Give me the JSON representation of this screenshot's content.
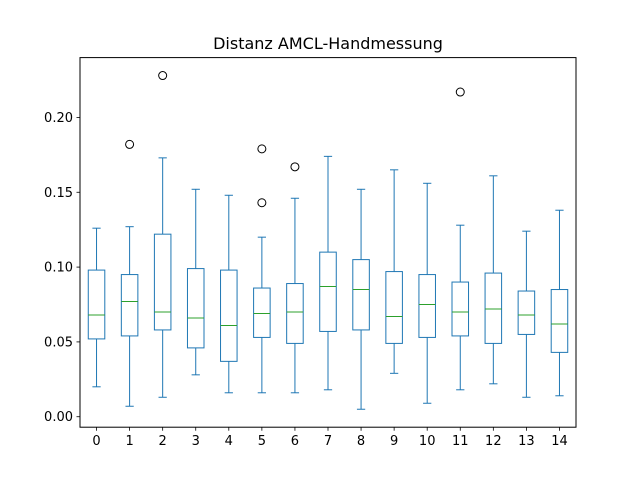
{
  "chart_data": {
    "type": "box",
    "title": "Distanz AMCL-Handmessung",
    "xlabel": "",
    "ylabel": "",
    "ylim": [
      -0.007,
      0.24
    ],
    "yticks": [
      0.0,
      0.05,
      0.1,
      0.15,
      0.2
    ],
    "ytick_labels": [
      "0.00",
      "0.05",
      "0.10",
      "0.15",
      "0.20"
    ],
    "categories": [
      "0",
      "1",
      "2",
      "3",
      "4",
      "5",
      "6",
      "7",
      "8",
      "9",
      "10",
      "11",
      "12",
      "13",
      "14"
    ],
    "grid": false,
    "legend": "none",
    "colors": {
      "box": "#1f77b4",
      "median": "#2ca02c",
      "outlier": "#000000"
    },
    "boxes": [
      {
        "label": "0",
        "whisker_low": 0.02,
        "q1": 0.052,
        "median": 0.068,
        "q3": 0.098,
        "whisker_high": 0.126,
        "outliers": []
      },
      {
        "label": "1",
        "whisker_low": 0.007,
        "q1": 0.054,
        "median": 0.077,
        "q3": 0.095,
        "whisker_high": 0.127,
        "outliers": [
          0.182
        ]
      },
      {
        "label": "2",
        "whisker_low": 0.013,
        "q1": 0.058,
        "median": 0.07,
        "q3": 0.122,
        "whisker_high": 0.173,
        "outliers": [
          0.228
        ]
      },
      {
        "label": "3",
        "whisker_low": 0.028,
        "q1": 0.046,
        "median": 0.066,
        "q3": 0.099,
        "whisker_high": 0.152,
        "outliers": []
      },
      {
        "label": "4",
        "whisker_low": 0.016,
        "q1": 0.037,
        "median": 0.061,
        "q3": 0.098,
        "whisker_high": 0.148,
        "outliers": []
      },
      {
        "label": "5",
        "whisker_low": 0.016,
        "q1": 0.053,
        "median": 0.069,
        "q3": 0.086,
        "whisker_high": 0.12,
        "outliers": [
          0.179,
          0.143
        ]
      },
      {
        "label": "6",
        "whisker_low": 0.016,
        "q1": 0.049,
        "median": 0.07,
        "q3": 0.089,
        "whisker_high": 0.146,
        "outliers": [
          0.167
        ]
      },
      {
        "label": "7",
        "whisker_low": 0.018,
        "q1": 0.057,
        "median": 0.087,
        "q3": 0.11,
        "whisker_high": 0.174,
        "outliers": []
      },
      {
        "label": "8",
        "whisker_low": 0.005,
        "q1": 0.058,
        "median": 0.085,
        "q3": 0.105,
        "whisker_high": 0.152,
        "outliers": []
      },
      {
        "label": "9",
        "whisker_low": 0.029,
        "q1": 0.049,
        "median": 0.067,
        "q3": 0.097,
        "whisker_high": 0.165,
        "outliers": []
      },
      {
        "label": "10",
        "whisker_low": 0.009,
        "q1": 0.053,
        "median": 0.075,
        "q3": 0.095,
        "whisker_high": 0.156,
        "outliers": []
      },
      {
        "label": "11",
        "whisker_low": 0.018,
        "q1": 0.054,
        "median": 0.07,
        "q3": 0.09,
        "whisker_high": 0.128,
        "outliers": [
          0.217
        ]
      },
      {
        "label": "12",
        "whisker_low": 0.022,
        "q1": 0.049,
        "median": 0.072,
        "q3": 0.096,
        "whisker_high": 0.161,
        "outliers": []
      },
      {
        "label": "13",
        "whisker_low": 0.013,
        "q1": 0.055,
        "median": 0.068,
        "q3": 0.084,
        "whisker_high": 0.124,
        "outliers": []
      },
      {
        "label": "14",
        "whisker_low": 0.014,
        "q1": 0.043,
        "median": 0.062,
        "q3": 0.085,
        "whisker_high": 0.138,
        "outliers": []
      }
    ]
  }
}
